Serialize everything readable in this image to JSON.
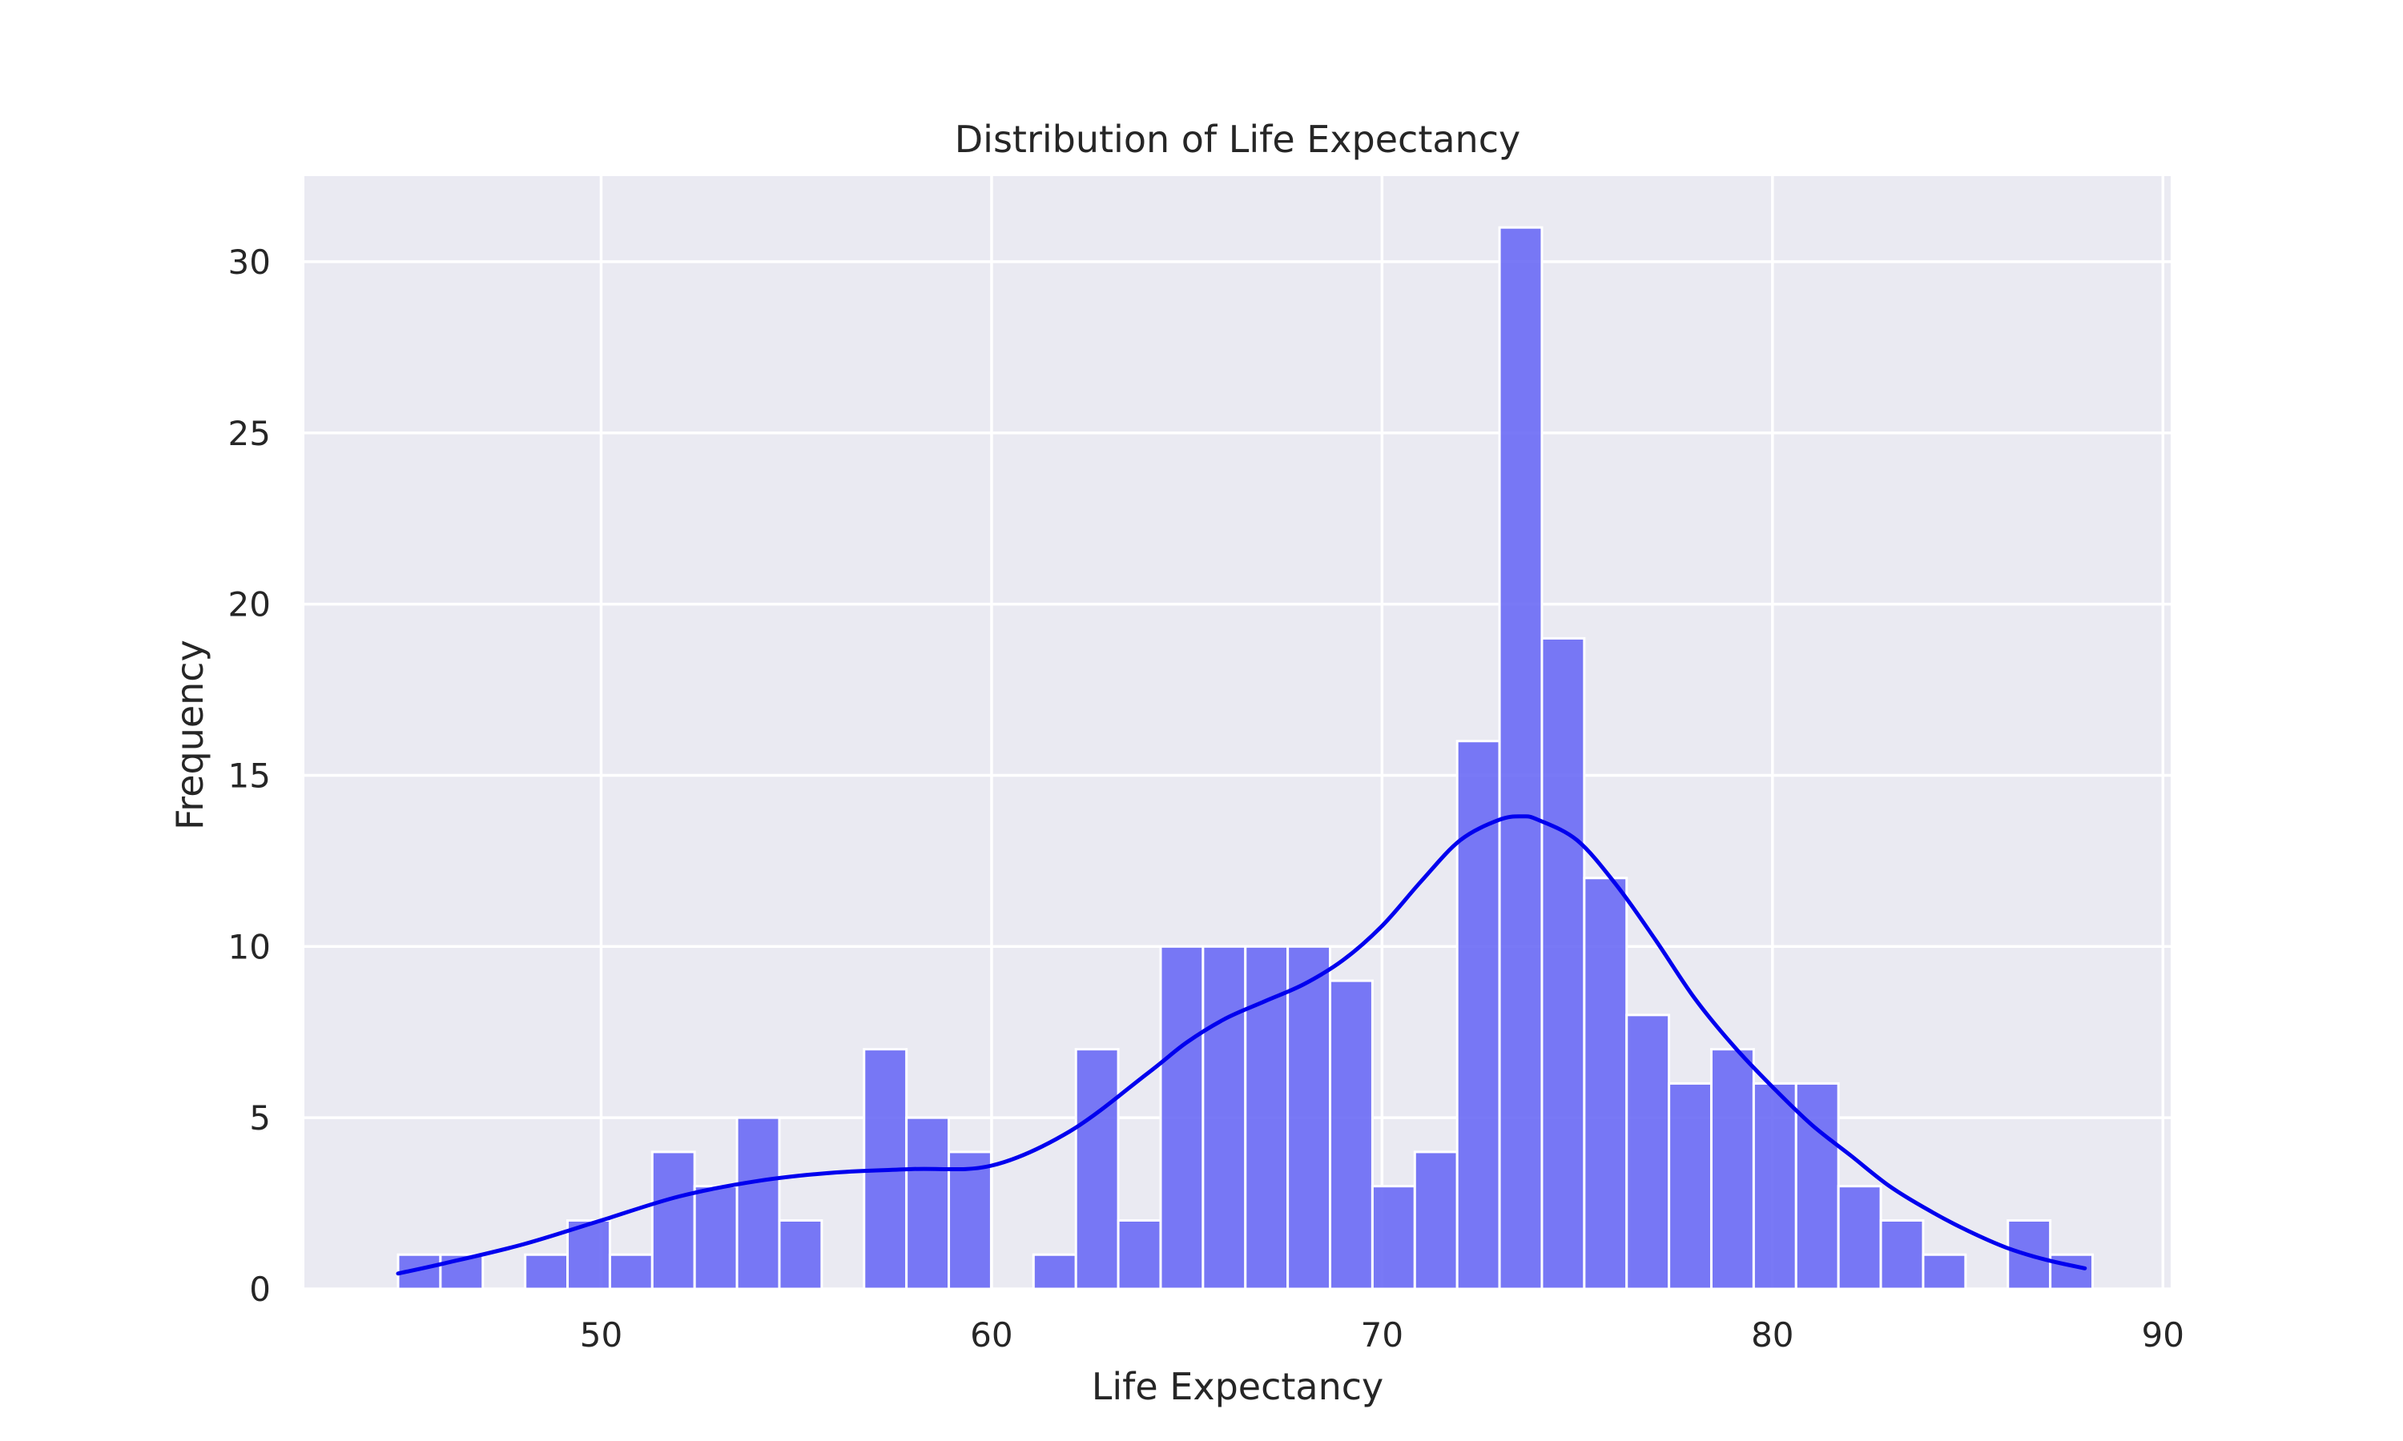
{
  "chart_data": {
    "type": "bar",
    "subtype": "histogram-with-kde",
    "title": "Distribution of Life Expectancy",
    "xlabel": "Life Expectancy",
    "ylabel": "Frequency",
    "xlim": [
      42.4,
      90.2
    ],
    "ylim": [
      0,
      32.5
    ],
    "x_ticks": [
      50,
      60,
      70,
      80,
      90
    ],
    "y_ticks": [
      0,
      5,
      10,
      15,
      20,
      25,
      30
    ],
    "grid": true,
    "legend": "none",
    "bin_start": 44.8,
    "bin_width": 1.085,
    "counts": [
      1,
      1,
      0,
      1,
      2,
      1,
      4,
      3,
      5,
      2,
      0,
      7,
      5,
      4,
      0,
      1,
      7,
      2,
      10,
      10,
      10,
      10,
      9,
      3,
      4,
      16,
      31,
      19,
      12,
      8,
      6,
      7,
      6,
      6,
      3,
      2,
      1,
      0,
      2,
      1
    ],
    "kde": {
      "x": [
        44.8,
        46.0,
        48.0,
        50.0,
        52.0,
        54.0,
        56.0,
        58.0,
        60.0,
        62.0,
        64.0,
        65.0,
        66.0,
        67.0,
        68.0,
        69.0,
        70.0,
        71.0,
        72.0,
        73.0,
        73.6,
        74.0,
        75.0,
        76.0,
        77.0,
        78.0,
        79.0,
        80.0,
        81.0,
        82.0,
        83.0,
        84.0,
        85.0,
        86.0,
        87.0,
        88.0
      ],
      "y": [
        0.45,
        0.75,
        1.3,
        2.0,
        2.7,
        3.15,
        3.4,
        3.5,
        3.6,
        4.6,
        6.3,
        7.2,
        7.9,
        8.4,
        8.9,
        9.6,
        10.6,
        11.9,
        13.1,
        13.7,
        13.8,
        13.7,
        13.1,
        11.8,
        10.2,
        8.5,
        7.1,
        5.9,
        4.8,
        3.9,
        3.0,
        2.3,
        1.7,
        1.2,
        0.85,
        0.6
      ]
    },
    "colors": {
      "bar": "#6a6af5",
      "bar_edge": "#ffffff",
      "kde": "#0000ee",
      "plot_bg": "#eaeaf2",
      "grid": "#ffffff",
      "text": "#262626"
    }
  }
}
